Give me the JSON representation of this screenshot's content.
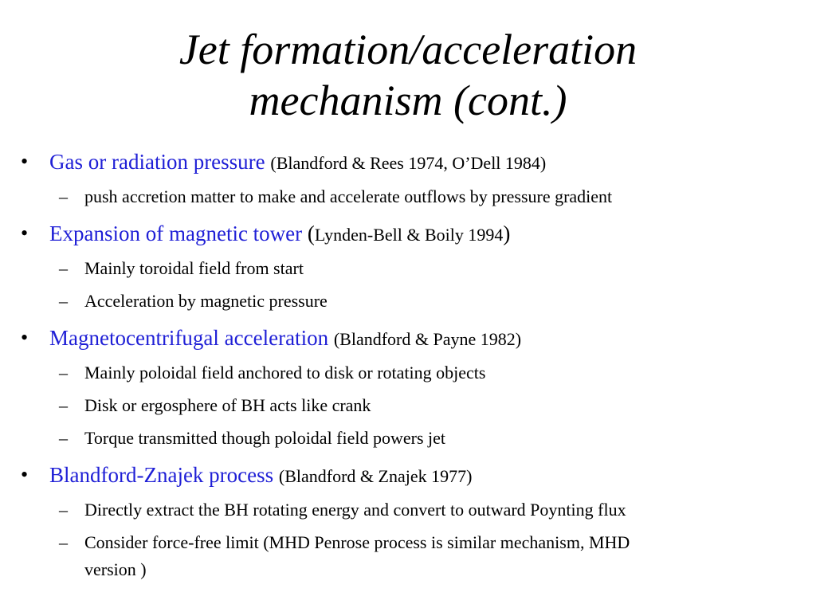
{
  "title": {
    "line1": "Jet formation/acceleration",
    "line2": "mechanism (cont.)"
  },
  "bullets": [
    {
      "topic": "Gas or radiation pressure",
      "ref": "(Blandford & Rees 1974, O’Dell 1984)",
      "subs": [
        "push accretion matter to make and accelerate outflows by pressure gradient"
      ]
    },
    {
      "topic": "Expansion of magnetic tower",
      "paren_open": "(",
      "ref": "Lynden-Bell & Boily 1994",
      "paren_close": ")",
      "subs": [
        "Mainly toroidal field from start",
        "Acceleration by magnetic pressure"
      ]
    },
    {
      "topic": "Magnetocentrifugal acceleration",
      "ref": "(Blandford & Payne 1982)",
      "subs": [
        "Mainly poloidal field anchored to disk or rotating objects",
        "Disk or ergosphere of BH acts like crank",
        "Torque transmitted though poloidal field powers jet"
      ]
    },
    {
      "topic": "Blandford-Znajek process",
      "ref": "(Blandford & Znajek 1977)",
      "subs": [
        "Directly extract the BH rotating energy and convert to outward Poynting flux",
        "Consider force-free limit (MHD Penrose process is similar mechanism, MHD",
        "version )"
      ]
    }
  ],
  "marks": {
    "bullet": "•",
    "dash": "–"
  }
}
